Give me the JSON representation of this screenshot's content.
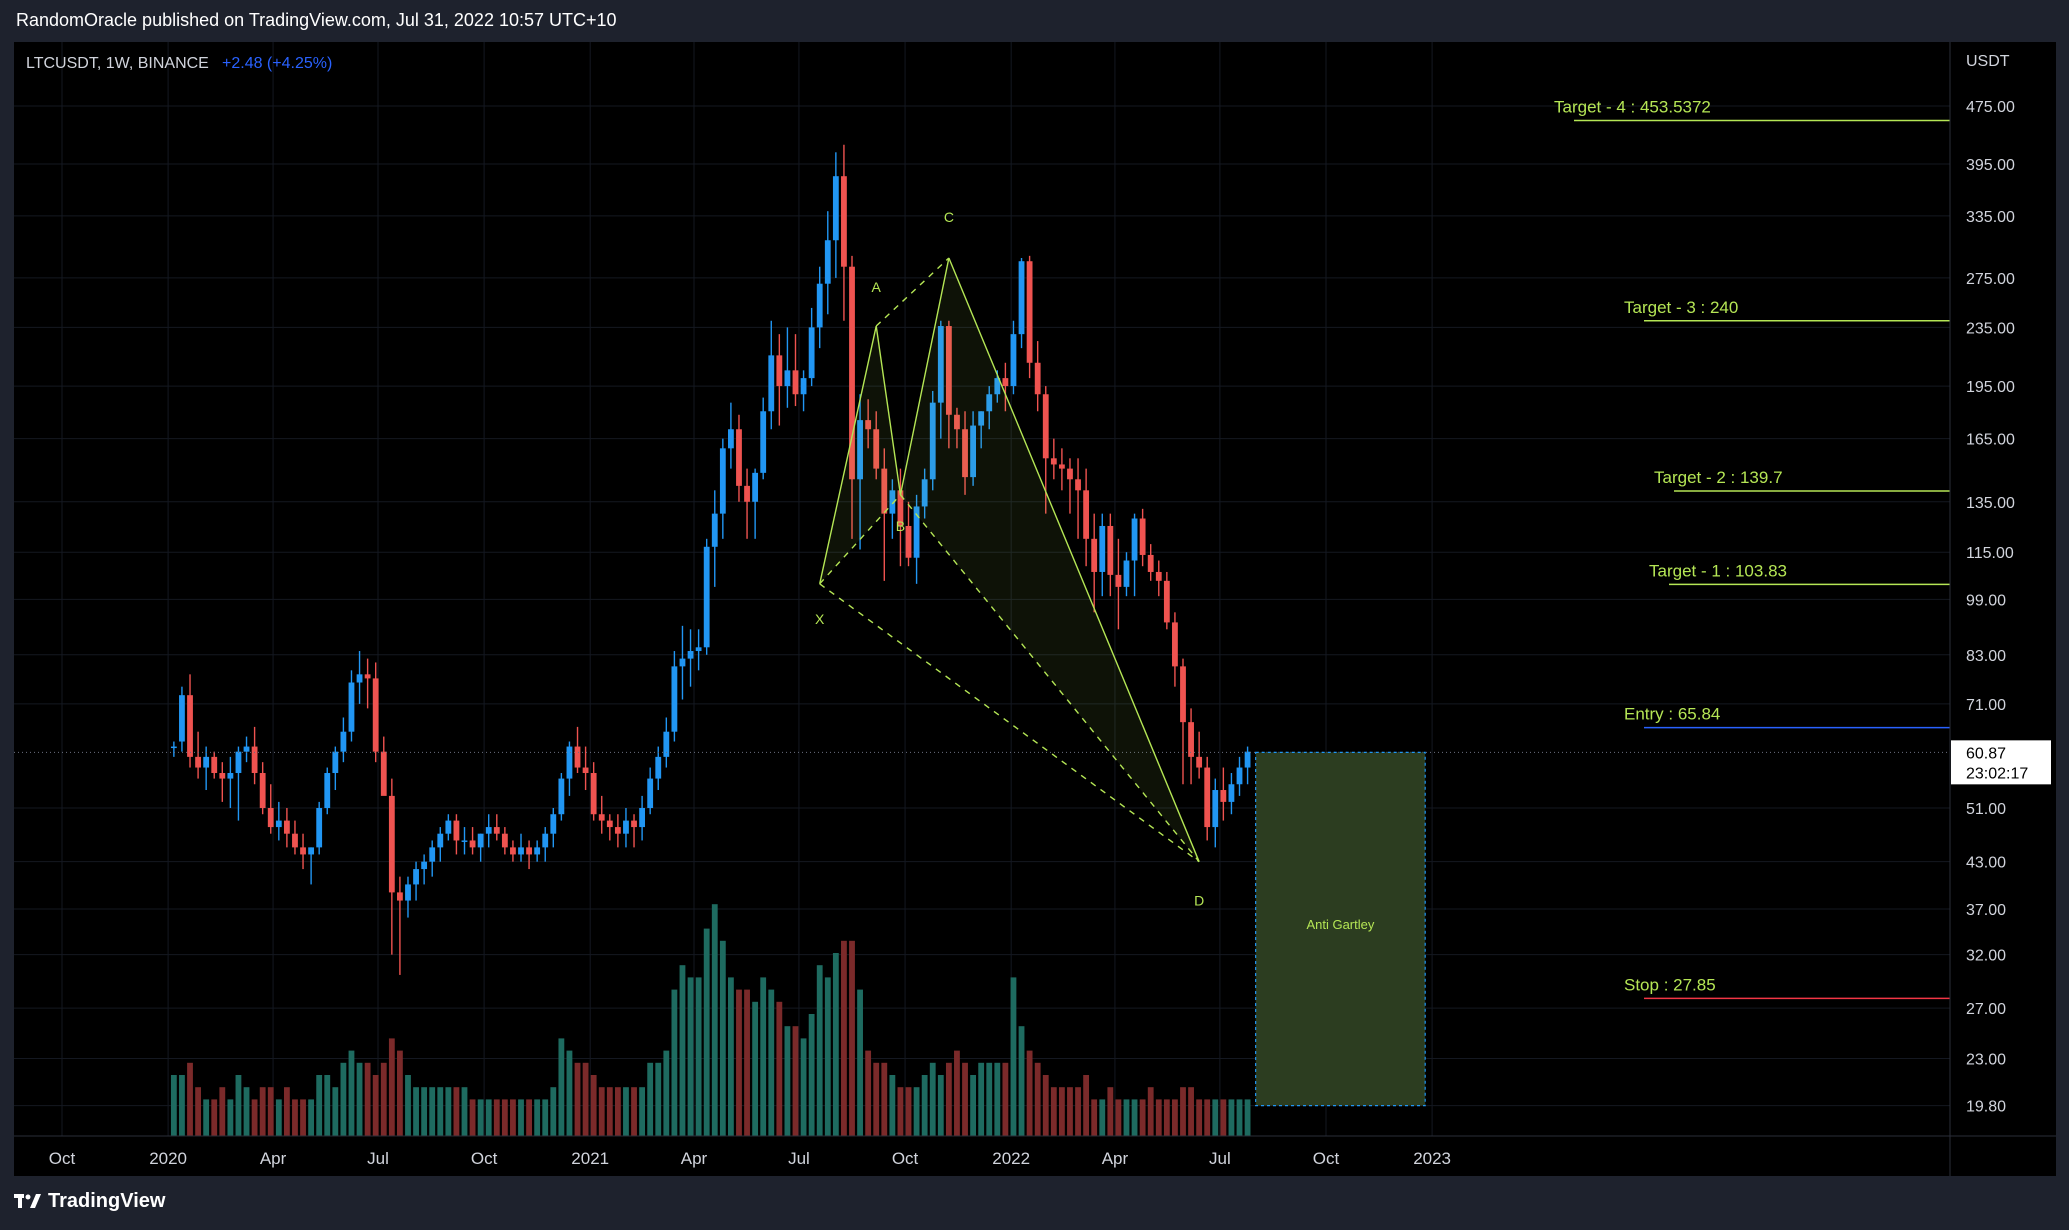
{
  "header": {
    "publisher": "RandomOracle published on TradingView.com, Jul 31, 2022 10:57 UTC+10"
  },
  "symbol": {
    "pair": "LTCUSDT, 1W, BINANCE",
    "change": "+2.48 (+4.25%)"
  },
  "price_axis": {
    "unit": "USDT",
    "current_price": "60.87",
    "countdown": "23:02:17"
  },
  "footer": {
    "brand": "TradingView"
  },
  "colors": {
    "up": "#2196f3",
    "down": "#ef5350",
    "vol_up": "#1e6b60",
    "vol_down": "#7b2a2a",
    "pattern": "#b5e655",
    "entry": "#2962ff",
    "stop": "#f23645",
    "box_fill": "#2c3d20",
    "box_border": "#2196f3"
  },
  "chart_data": {
    "type": "candlestick",
    "log_scale": true,
    "y_ticks": [
      "475.00",
      "395.00",
      "335.00",
      "275.00",
      "235.00",
      "195.00",
      "165.00",
      "135.00",
      "115.00",
      "99.00",
      "83.00",
      "71.00",
      "51.00",
      "43.00",
      "37.00",
      "32.00",
      "27.00",
      "23.00",
      "19.80"
    ],
    "x_ticks": [
      "Oct",
      "2020",
      "Apr",
      "Jul",
      "Oct",
      "2021",
      "Apr",
      "Jul",
      "Oct",
      "2022",
      "Apr",
      "Jul",
      "Oct",
      "2023"
    ],
    "levels": [
      {
        "label": "Target - 4 : 453.5372",
        "value": 453.5372,
        "color": "#b5e655"
      },
      {
        "label": "Target - 3 : 240",
        "value": 240,
        "color": "#b5e655"
      },
      {
        "label": "Target - 2 : 139.7",
        "value": 139.7,
        "color": "#b5e655"
      },
      {
        "label": "Target - 1 : 103.83",
        "value": 103.83,
        "color": "#b5e655"
      },
      {
        "label": "Entry : 65.84",
        "value": 65.84,
        "color": "#2962ff"
      },
      {
        "label": "Stop : 27.85",
        "value": 27.85,
        "color": "#f23645"
      }
    ],
    "pattern": {
      "name": "Anti Gartley",
      "points": [
        {
          "label": "X",
          "date": "2021-07-19",
          "price": 104
        },
        {
          "label": "A",
          "date": "2021-09-06",
          "price": 236
        },
        {
          "label": "B",
          "date": "2021-09-27",
          "price": 138
        },
        {
          "label": "C",
          "date": "2021-11-08",
          "price": 293
        },
        {
          "label": "D",
          "date": "2022-06-13",
          "price": 43
        }
      ]
    },
    "candles": [
      [
        62,
        63,
        60,
        62,
        5
      ],
      [
        63,
        75,
        61,
        73,
        5
      ],
      [
        73,
        78,
        58,
        60,
        6
      ],
      [
        60,
        65,
        56,
        58,
        4
      ],
      [
        58,
        62,
        54,
        60,
        3
      ],
      [
        60,
        61,
        56,
        57,
        3
      ],
      [
        57,
        59,
        52,
        56,
        4
      ],
      [
        56,
        60,
        51,
        57,
        3
      ],
      [
        57,
        62,
        49,
        61,
        5
      ],
      [
        61,
        64,
        59,
        62,
        4
      ],
      [
        62,
        66,
        55,
        57,
        3
      ],
      [
        57,
        59,
        50,
        51,
        4
      ],
      [
        51,
        55,
        47,
        48,
        4
      ],
      [
        48,
        52,
        46,
        49,
        3
      ],
      [
        49,
        51,
        45,
        47,
        4
      ],
      [
        47,
        49,
        44,
        45,
        3
      ],
      [
        45,
        47,
        42,
        44,
        3
      ],
      [
        44,
        45,
        40,
        45,
        3
      ],
      [
        45,
        52,
        44,
        51,
        5
      ],
      [
        51,
        58,
        50,
        57,
        5
      ],
      [
        57,
        62,
        54,
        61,
        4
      ],
      [
        61,
        68,
        59,
        65,
        6
      ],
      [
        65,
        79,
        63,
        76,
        7
      ],
      [
        76,
        84,
        71,
        78,
        6
      ],
      [
        78,
        82,
        70,
        77,
        6
      ],
      [
        77,
        81,
        59,
        61,
        5
      ],
      [
        61,
        64,
        55,
        53,
        6
      ],
      [
        53,
        56,
        32,
        39,
        8
      ],
      [
        39,
        41,
        30,
        38,
        7
      ],
      [
        38,
        41,
        36,
        40,
        5
      ],
      [
        40,
        43,
        38,
        42,
        4
      ],
      [
        42,
        44,
        40,
        43,
        4
      ],
      [
        43,
        46,
        41,
        45,
        4
      ],
      [
        45,
        48,
        43,
        47,
        4
      ],
      [
        47,
        50,
        46,
        49,
        4
      ],
      [
        49,
        50,
        44,
        46,
        4
      ],
      [
        46,
        48,
        44,
        46,
        4
      ],
      [
        46,
        48,
        44,
        45,
        3
      ],
      [
        45,
        47,
        43,
        47,
        3
      ],
      [
        47,
        50,
        45,
        48,
        3
      ],
      [
        48,
        50,
        46,
        47,
        3
      ],
      [
        47,
        48,
        44,
        45,
        3
      ],
      [
        45,
        46,
        43,
        44,
        3
      ],
      [
        44,
        47,
        43,
        45,
        3
      ],
      [
        45,
        46,
        42,
        44,
        3
      ],
      [
        44,
        46,
        43,
        45,
        3
      ],
      [
        45,
        48,
        43,
        47,
        3
      ],
      [
        47,
        51,
        45,
        50,
        4
      ],
      [
        50,
        57,
        49,
        56,
        8
      ],
      [
        56,
        63,
        53,
        62,
        7
      ],
      [
        62,
        66,
        57,
        58,
        6
      ],
      [
        58,
        62,
        54,
        57,
        6
      ],
      [
        57,
        59,
        49,
        50,
        5
      ],
      [
        50,
        53,
        47,
        49,
        4
      ],
      [
        49,
        50,
        46,
        48,
        4
      ],
      [
        48,
        50,
        45,
        47,
        4
      ],
      [
        47,
        51,
        45,
        49,
        4
      ],
      [
        49,
        50,
        45,
        48,
        4
      ],
      [
        48,
        53,
        46,
        51,
        4
      ],
      [
        51,
        58,
        50,
        56,
        6
      ],
      [
        56,
        62,
        54,
        60,
        6
      ],
      [
        60,
        68,
        58,
        65,
        7
      ],
      [
        65,
        84,
        63,
        80,
        12
      ],
      [
        80,
        91,
        72,
        82,
        14
      ],
      [
        82,
        90,
        75,
        84,
        13
      ],
      [
        84,
        90,
        79,
        85,
        13
      ],
      [
        85,
        120,
        83,
        117,
        17
      ],
      [
        117,
        140,
        103,
        130,
        19
      ],
      [
        130,
        165,
        120,
        160,
        16
      ],
      [
        160,
        185,
        150,
        170,
        13
      ],
      [
        170,
        178,
        135,
        142,
        12
      ],
      [
        142,
        150,
        120,
        135,
        12
      ],
      [
        135,
        150,
        120,
        148,
        11
      ],
      [
        148,
        188,
        145,
        180,
        13
      ],
      [
        180,
        240,
        170,
        215,
        12
      ],
      [
        215,
        230,
        172,
        195,
        11
      ],
      [
        195,
        235,
        182,
        205,
        9
      ],
      [
        205,
        230,
        183,
        190,
        9
      ],
      [
        190,
        205,
        180,
        200,
        8
      ],
      [
        200,
        250,
        195,
        235,
        10
      ],
      [
        235,
        285,
        220,
        270,
        14
      ],
      [
        270,
        340,
        245,
        310,
        13
      ],
      [
        310,
        410,
        275,
        380,
        15
      ],
      [
        380,
        420,
        240,
        285,
        16
      ],
      [
        285,
        295,
        120,
        145,
        16
      ],
      [
        145,
        190,
        116,
        175,
        12
      ],
      [
        175,
        187,
        160,
        170,
        7
      ],
      [
        170,
        180,
        145,
        150,
        6
      ],
      [
        150,
        160,
        105,
        130,
        6
      ],
      [
        130,
        145,
        120,
        140,
        5
      ],
      [
        140,
        150,
        110,
        125,
        4
      ],
      [
        125,
        135,
        110,
        113,
        4
      ],
      [
        113,
        138,
        104,
        133,
        4
      ],
      [
        133,
        150,
        128,
        145,
        5
      ],
      [
        145,
        192,
        140,
        185,
        6
      ],
      [
        185,
        240,
        165,
        236,
        5
      ],
      [
        236,
        240,
        160,
        178,
        6
      ],
      [
        178,
        182,
        160,
        170,
        7
      ],
      [
        170,
        180,
        138,
        146,
        6
      ],
      [
        146,
        180,
        142,
        172,
        5
      ],
      [
        172,
        180,
        160,
        180,
        6
      ],
      [
        180,
        195,
        170,
        190,
        6
      ],
      [
        190,
        205,
        185,
        200,
        6
      ],
      [
        200,
        210,
        180,
        195,
        6
      ],
      [
        195,
        240,
        190,
        230,
        13
      ],
      [
        230,
        293,
        220,
        290,
        9
      ],
      [
        290,
        295,
        200,
        210,
        7
      ],
      [
        210,
        225,
        180,
        190,
        6
      ],
      [
        190,
        195,
        130,
        155,
        5
      ],
      [
        155,
        165,
        145,
        152,
        4
      ],
      [
        152,
        160,
        140,
        150,
        4
      ],
      [
        150,
        155,
        130,
        145,
        4
      ],
      [
        145,
        155,
        120,
        140,
        4
      ],
      [
        140,
        150,
        110,
        120,
        5
      ],
      [
        120,
        130,
        95,
        108,
        3
      ],
      [
        108,
        130,
        100,
        125,
        3
      ],
      [
        125,
        130,
        100,
        107,
        4
      ],
      [
        107,
        120,
        90,
        103,
        3
      ],
      [
        103,
        115,
        100,
        112,
        3
      ],
      [
        112,
        130,
        100,
        128,
        3
      ],
      [
        128,
        132,
        110,
        114,
        3
      ],
      [
        114,
        118,
        105,
        108,
        4
      ],
      [
        108,
        112,
        100,
        105,
        3
      ],
      [
        105,
        108,
        90,
        92,
        3
      ],
      [
        92,
        95,
        75,
        80,
        3
      ],
      [
        80,
        82,
        55,
        67,
        4
      ],
      [
        67,
        70,
        55,
        60,
        4
      ],
      [
        60,
        65,
        56,
        58,
        3
      ],
      [
        58,
        60,
        46,
        48,
        3
      ],
      [
        48,
        56,
        45,
        54,
        3
      ],
      [
        54,
        58,
        49,
        52,
        3
      ],
      [
        52,
        57,
        50,
        55,
        3
      ],
      [
        55,
        60,
        53,
        58,
        3
      ],
      [
        58,
        62,
        55,
        61,
        3
      ]
    ],
    "forecast_box": {
      "from": "2022-08-01",
      "to": "2022-12-26",
      "top": 60.87,
      "bottom": 19.8
    }
  }
}
